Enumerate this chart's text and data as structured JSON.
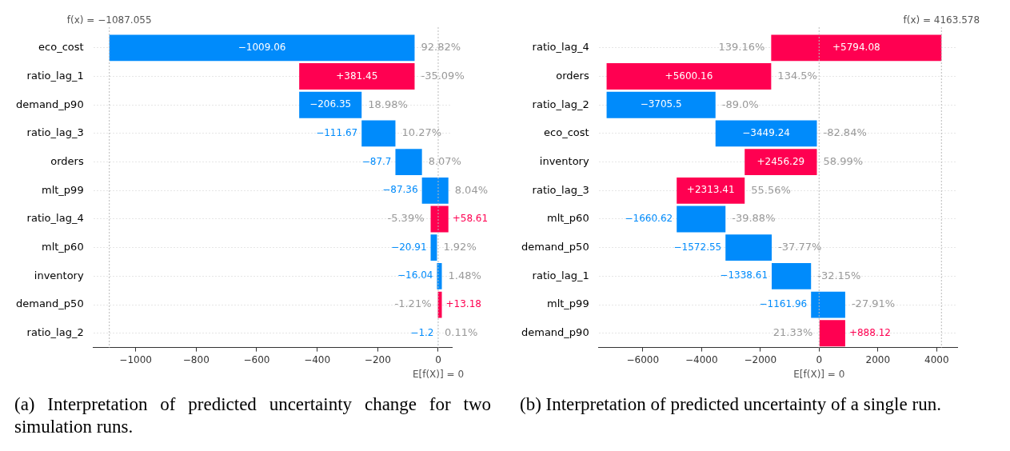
{
  "chart_data": [
    {
      "type": "bar",
      "orientation": "horizontal",
      "categories": [
        "eco_cost",
        "ratio_lag_1",
        "demand_p90",
        "ratio_lag_3",
        "orders",
        "mlt_p99",
        "ratio_lag_4",
        "mlt_p60",
        "inventory",
        "demand_p50",
        "ratio_lag_2"
      ],
      "values": [
        -1009.06,
        381.45,
        -206.35,
        -111.67,
        -87.7,
        -87.36,
        58.61,
        -20.91,
        -16.04,
        13.18,
        -1.2
      ],
      "base": [
        -77.99,
        -459.44,
        -253.09,
        -141.42,
        -53.72,
        33.64,
        -24.97,
        -4.06,
        11.98,
        -1.2,
        0
      ],
      "colors": [
        "#008bfb",
        "#ff0051",
        "#008bfb",
        "#008bfb",
        "#008bfb",
        "#008bfb",
        "#ff0051",
        "#008bfb",
        "#008bfb",
        "#ff0051",
        "#008bfb"
      ],
      "value_labels": [
        "−1009.06",
        "+381.45",
        "−206.35",
        "−111.67",
        "−87.7",
        "−87.36",
        "+58.61",
        "−20.91",
        "−16.04",
        "+13.18",
        "−1.2"
      ],
      "xlim": [
        -1140,
        45
      ],
      "xticks": [
        -1000,
        -800,
        -600,
        -400,
        -200,
        0
      ],
      "grid": "y",
      "ref_lines": [
        {
          "axis": "x",
          "value": -1087.055,
          "label": "f(x) = −1087.055"
        },
        {
          "axis": "x",
          "value": 0,
          "label": "E[f(X)] = 0"
        }
      ],
      "annotations": [
        {
          "text": "92.82%",
          "x": -77.99,
          "y": "eco_cost"
        },
        {
          "text": "-35.09%",
          "x": -77.99,
          "y": "ratio_lag_1"
        },
        {
          "text": "18.98%",
          "x": -253.09,
          "y": "demand_p90"
        },
        {
          "text": "10.27%",
          "x": -141.42,
          "y": "ratio_lag_3"
        },
        {
          "text": "8.07%",
          "x": -53.72,
          "y": "orders"
        },
        {
          "text": "8.04%",
          "x": 33.64,
          "y": "mlt_p99"
        },
        {
          "text": "-5.39%",
          "x": -24.97,
          "y": "ratio_lag_4"
        },
        {
          "text": "1.92%",
          "x": -4.06,
          "y": "mlt_p60"
        },
        {
          "text": "1.48%",
          "x": 11.98,
          "y": "inventory"
        },
        {
          "text": "-1.21%",
          "x": -1.2,
          "y": "demand_p50"
        },
        {
          "text": "0.11%",
          "x": 0,
          "y": "ratio_lag_2"
        },
        "(a) Interpretation of predicted uncertainty change for two simulation runs."
      ]
    },
    {
      "type": "bar",
      "orientation": "horizontal",
      "categories": [
        "ratio_lag_4",
        "orders",
        "ratio_lag_2",
        "eco_cost",
        "inventory",
        "ratio_lag_3",
        "mlt_p60",
        "demand_p50",
        "ratio_lag_1",
        "mlt_p99",
        "demand_p90"
      ],
      "values": [
        5794.08,
        5600.16,
        -3705.5,
        -3449.24,
        2456.29,
        2313.41,
        -1660.62,
        -1572.55,
        -1338.61,
        -1161.96,
        888.12
      ],
      "base": [
        -1630.5,
        -7230.66,
        -3525.16,
        -75.92,
        -2532.21,
        -4845.62,
        -3185.0,
        -1612.45,
        -273.84,
        888.12,
        0
      ],
      "colors": [
        "#ff0051",
        "#ff0051",
        "#008bfb",
        "#008bfb",
        "#ff0051",
        "#ff0051",
        "#008bfb",
        "#008bfb",
        "#008bfb",
        "#008bfb",
        "#ff0051"
      ],
      "value_labels": [
        "+5794.08",
        "+5600.16",
        "−3705.5",
        "−3449.24",
        "+2456.29",
        "+2313.41",
        "−1660.62",
        "−1572.55",
        "−1338.61",
        "−1161.96",
        "+888.12"
      ],
      "xlim": [
        -7500,
        4700
      ],
      "xticks": [
        -6000,
        -4000,
        -2000,
        0,
        2000,
        4000
      ],
      "grid": "y",
      "ref_lines": [
        {
          "axis": "x",
          "value": 4163.578,
          "label": "f(x) = 4163.578"
        },
        {
          "axis": "x",
          "value": 0,
          "label": "E[f(X)] = 0"
        }
      ],
      "annotations": [
        {
          "text": "139.16%",
          "x": -1630.5,
          "y": "ratio_lag_4"
        },
        {
          "text": "134.5%",
          "x": -1630.5,
          "y": "orders"
        },
        {
          "text": "-89.0%",
          "x": -3525.16,
          "y": "ratio_lag_2"
        },
        {
          "text": "-82.84%",
          "x": -75.92,
          "y": "eco_cost"
        },
        {
          "text": "58.99%",
          "x": -75.92,
          "y": "inventory"
        },
        {
          "text": "55.56%",
          "x": -2532.21,
          "y": "ratio_lag_3"
        },
        {
          "text": "-39.88%",
          "x": -3185.0,
          "y": "mlt_p60"
        },
        {
          "text": "-37.77%",
          "x": -1612.45,
          "y": "demand_p50"
        },
        {
          "text": "-32.15%",
          "x": -273.84,
          "y": "ratio_lag_1"
        },
        {
          "text": "-27.91%",
          "x": 888.12,
          "y": "mlt_p99"
        },
        {
          "text": "21.33%",
          "x": 0,
          "y": "demand_p90"
        },
        "(b) Interpretation of predicted uncertainty of a single run."
      ]
    }
  ]
}
